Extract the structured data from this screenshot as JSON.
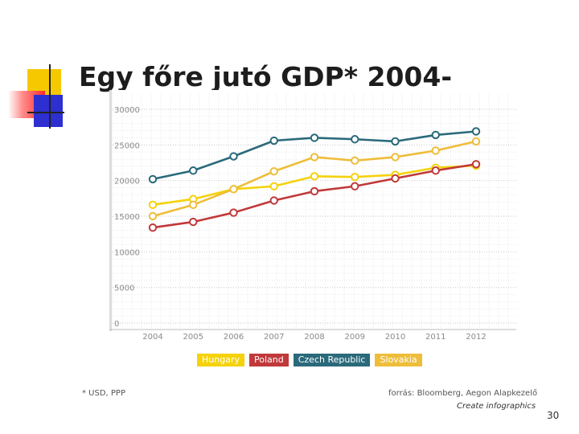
{
  "slide": {
    "title": "Egy főre jutó GDP* 2004-",
    "footnote": "* USD, PPP",
    "source": "forrás: Bloomberg, Aegon Alapkezelő",
    "credit": "Create infographics",
    "page_number": "30"
  },
  "chart_data": {
    "type": "line",
    "title": "Egy főre jutó GDP* 2004-",
    "xlabel": "",
    "ylabel": "",
    "x": [
      "2004",
      "2005",
      "2006",
      "2007",
      "2008",
      "2009",
      "2010",
      "2011",
      "2012"
    ],
    "ylim": [
      0,
      30000
    ],
    "yticks": [
      0,
      5000,
      10000,
      15000,
      20000,
      25000,
      30000
    ],
    "ytick_labels": [
      "0",
      "5000",
      "10000",
      "15000",
      "20000",
      "25000",
      "30000"
    ],
    "grid": true,
    "legend_position": "bottom",
    "series": [
      {
        "name": "Hungary",
        "color": "#f5d20a",
        "values": [
          16600,
          17400,
          18800,
          19200,
          20600,
          20500,
          20800,
          21800,
          22100
        ]
      },
      {
        "name": "Poland",
        "color": "#c0393b",
        "values": [
          13400,
          14200,
          15500,
          17200,
          18500,
          19200,
          20300,
          21400,
          22300
        ]
      },
      {
        "name": "Czech Republic",
        "color": "#2a6a7a",
        "values": [
          20200,
          21400,
          23400,
          25600,
          26000,
          25800,
          25500,
          26400,
          26900
        ]
      },
      {
        "name": "Slovakia",
        "color": "#eebd3a",
        "values": [
          15000,
          16600,
          18800,
          21300,
          23300,
          22800,
          23300,
          24200,
          25500
        ]
      }
    ]
  }
}
